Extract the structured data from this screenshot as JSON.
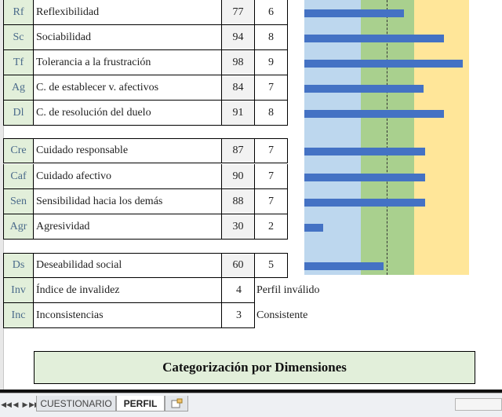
{
  "rows_a": [
    {
      "code": "Rf",
      "name": "Reflexibilidad",
      "pd": "77",
      "pt": "6",
      "bar": 63
    },
    {
      "code": "Sc",
      "name": "Sociabilidad",
      "pd": "94",
      "pt": "8",
      "bar": 88
    },
    {
      "code": "Tf",
      "name": "Tolerancia a la frustración",
      "pd": "98",
      "pt": "9",
      "bar": 100
    },
    {
      "code": "Ag",
      "name": "C. de establecer v. afectivos",
      "pd": "84",
      "pt": "7",
      "bar": 75
    },
    {
      "code": "Dl",
      "name": "C. de resolución del duelo",
      "pd": "91",
      "pt": "8",
      "bar": 88
    }
  ],
  "rows_b": [
    {
      "code": "Cre",
      "name": "Cuidado responsable",
      "pd": "87",
      "pt": "7",
      "bar": 76
    },
    {
      "code": "Caf",
      "name": "Cuidado afectivo",
      "pd": "90",
      "pt": "7",
      "bar": 76
    },
    {
      "code": "Sen",
      "name": "Sensibilidad hacia los demás",
      "pd": "88",
      "pt": "7",
      "bar": 76
    },
    {
      "code": "Agr",
      "name": "Agresividad",
      "pd": "30",
      "pt": "2",
      "bar": 12
    }
  ],
  "row_ds": {
    "code": "Ds",
    "name": "Deseabilidad social",
    "pd": "60",
    "pt": "5",
    "bar": 50
  },
  "row_inv": {
    "code": "Inv",
    "name": "Índice de invalidez",
    "pd": "4",
    "status": "Perfil inválido"
  },
  "row_inc": {
    "code": "Inc",
    "name": "Inconsistencias",
    "pd": "3",
    "status": "Consistente"
  },
  "section_title": "Categorización por Dimensiones",
  "tabs": {
    "tab1": "CUESTIONARIO",
    "tab2": "PERFIL"
  },
  "colors": {
    "bar": "#4472c4",
    "band_low": "#bdd7ee",
    "band_mid": "#a9d08e",
    "band_high": "#ffe699",
    "code_bg": "#e2efda"
  }
}
